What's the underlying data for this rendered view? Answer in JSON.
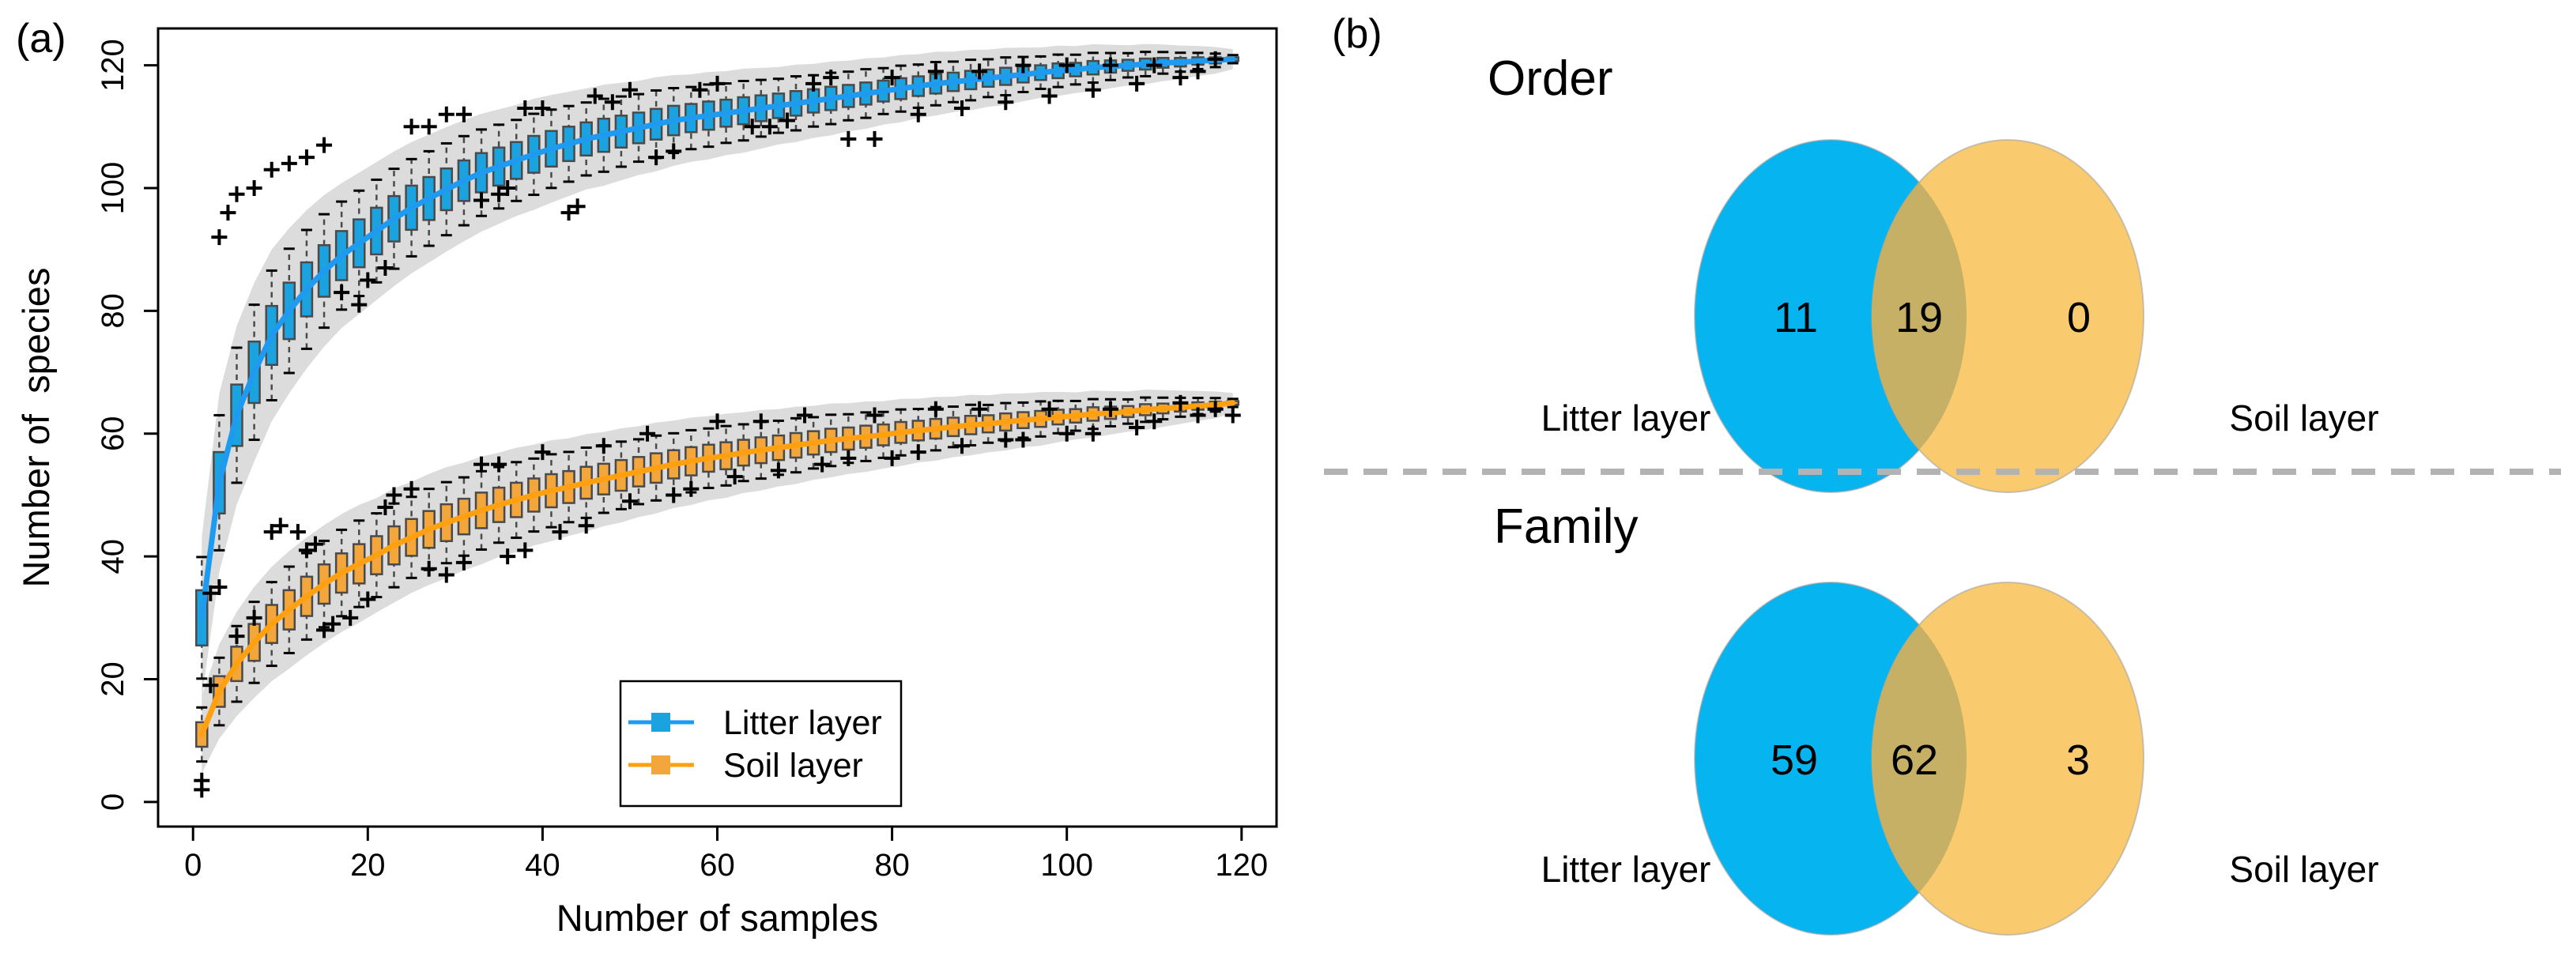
{
  "panel_a": {
    "label": "(a)"
  },
  "panel_b": {
    "label": "(b)"
  },
  "colors": {
    "venn_litter": "#06B4F0",
    "venn_soil": "#FACB6E",
    "venn_overlap": "#C5B065",
    "litter_text": "#1E90FF",
    "soil_text": "#FF8C00",
    "divider": "#B3B3B3"
  },
  "chart_data": [
    {
      "type": "boxplot-rarefaction",
      "xlabel": "Number of samples",
      "ylabel": "Number of  species",
      "xlim": [
        -4,
        124
      ],
      "ylim": [
        -4,
        126
      ],
      "x_ticks": [
        0,
        20,
        40,
        60,
        80,
        100,
        120
      ],
      "y_ticks": [
        0,
        20,
        40,
        60,
        80,
        100,
        120
      ],
      "grid": false,
      "band_color": "#DCDCDC",
      "whisker_color": "#4A4A4A",
      "box_stroke": "#4A4A4A",
      "legend_position": "inside-bottom-center",
      "series": [
        {
          "name": "Litter layer",
          "box_fill": "#1BA3E0",
          "line_color": "#1E9BF0",
          "whisker_factor": 2.2,
          "band_factor": 1.25,
          "band_pad": 0.8,
          "n": [
            1,
            3,
            5,
            7,
            9,
            11,
            13,
            15,
            17,
            19,
            21,
            23,
            25,
            27,
            29,
            31,
            33,
            35,
            37,
            39,
            41,
            43,
            45,
            47,
            49,
            51,
            53,
            55,
            57,
            59,
            61,
            63,
            65,
            67,
            69,
            71,
            73,
            75,
            77,
            79,
            81,
            83,
            85,
            87,
            89,
            91,
            93,
            95,
            97,
            99,
            101,
            103,
            105,
            107,
            109,
            111,
            113,
            115,
            117,
            119
          ],
          "median": [
            30,
            52,
            63,
            70,
            76,
            80,
            83.5,
            86.5,
            89,
            91,
            93,
            95,
            96.8,
            98.3,
            99.8,
            101.2,
            102.5,
            103.5,
            104.5,
            105.5,
            106.4,
            107.2,
            108,
            108.6,
            109.2,
            109.8,
            110.4,
            111,
            111.4,
            111.8,
            112.2,
            112.6,
            113,
            113.4,
            113.8,
            114.2,
            114.6,
            115,
            115.4,
            115.8,
            116.2,
            116.6,
            117,
            117.3,
            117.6,
            117.9,
            118.2,
            118.5,
            118.8,
            119.1,
            119.3,
            119.6,
            119.8,
            120,
            120.2,
            120.4,
            120.5,
            120.7,
            120.8,
            121
          ],
          "iqr_half": [
            4.5,
            5,
            5,
            5,
            4.8,
            4.6,
            4.4,
            4.2,
            4,
            3.9,
            3.8,
            3.7,
            3.6,
            3.5,
            3.4,
            3.3,
            3.2,
            3.1,
            3,
            3,
            2.9,
            2.8,
            2.7,
            2.7,
            2.6,
            2.5,
            2.5,
            2.4,
            2.3,
            2.3,
            2.2,
            2.2,
            2.1,
            2,
            2,
            1.9,
            1.9,
            1.8,
            1.8,
            1.7,
            1.7,
            1.6,
            1.6,
            1.5,
            1.5,
            1.4,
            1.4,
            1.3,
            1.2,
            1.2,
            1.1,
            1.1,
            1,
            0.9,
            0.9,
            0.8,
            0.7,
            0.6,
            0.5,
            0.3
          ],
          "outliers": [
            [
              2,
              34
            ],
            [
              3,
              92
            ],
            [
              4,
              96
            ],
            [
              5,
              99
            ],
            [
              7,
              100
            ],
            [
              9,
              103
            ],
            [
              11,
              104
            ],
            [
              13,
              105
            ],
            [
              15,
              107
            ],
            [
              17,
              83
            ],
            [
              19,
              81
            ],
            [
              20,
              85
            ],
            [
              22,
              87
            ],
            [
              25,
              110
            ],
            [
              27,
              110
            ],
            [
              29,
              112
            ],
            [
              31,
              112
            ],
            [
              33,
              98
            ],
            [
              35,
              99
            ],
            [
              36,
              100
            ],
            [
              38,
              113
            ],
            [
              40,
              113
            ],
            [
              43,
              96
            ],
            [
              44,
              97
            ],
            [
              46,
              115
            ],
            [
              48,
              114
            ],
            [
              50,
              116
            ],
            [
              53,
              105
            ],
            [
              55,
              106
            ],
            [
              58,
              116
            ],
            [
              60,
              117
            ],
            [
              64,
              110
            ],
            [
              66,
              110
            ],
            [
              68,
              111
            ],
            [
              71,
              117
            ],
            [
              73,
              118
            ],
            [
              75,
              108
            ],
            [
              78,
              108
            ],
            [
              80,
              118
            ],
            [
              83,
              112
            ],
            [
              85,
              119
            ],
            [
              88,
              113
            ],
            [
              90,
              119
            ],
            [
              93,
              114
            ],
            [
              95,
              120
            ],
            [
              98,
              115
            ],
            [
              100,
              120
            ],
            [
              103,
              116
            ],
            [
              105,
              120
            ],
            [
              108,
              117
            ],
            [
              110,
              120
            ],
            [
              113,
              118
            ],
            [
              115,
              119
            ],
            [
              117,
              121
            ]
          ]
        },
        {
          "name": "Soil layer",
          "box_fill": "#F3A63C",
          "line_color": "#FFA010",
          "whisker_factor": 2.2,
          "band_factor": 1.25,
          "band_pad": 0.8,
          "n": [
            1,
            3,
            5,
            7,
            9,
            11,
            13,
            15,
            17,
            19,
            21,
            23,
            25,
            27,
            29,
            31,
            33,
            35,
            37,
            39,
            41,
            43,
            45,
            47,
            49,
            51,
            53,
            55,
            57,
            59,
            61,
            63,
            65,
            67,
            69,
            71,
            73,
            75,
            77,
            79,
            81,
            83,
            85,
            87,
            89,
            91,
            93,
            95,
            97,
            99,
            101,
            103,
            105,
            107,
            109,
            111,
            113,
            115,
            117,
            119
          ],
          "median": [
            11,
            18,
            22.5,
            26,
            29,
            31.3,
            33.5,
            35.5,
            37.3,
            38.8,
            40.2,
            41.8,
            43.1,
            44.4,
            45.5,
            46.5,
            47.5,
            48.4,
            49.2,
            50,
            50.7,
            51.3,
            52,
            52.6,
            53.2,
            53.8,
            54.4,
            55,
            55.5,
            56,
            56.4,
            56.9,
            57.3,
            57.7,
            58.1,
            58.5,
            58.9,
            59.2,
            59.5,
            59.8,
            60.2,
            60.5,
            60.8,
            61.1,
            61.4,
            61.6,
            61.9,
            62.2,
            62.4,
            62.7,
            62.9,
            63.2,
            63.4,
            63.6,
            63.9,
            64.1,
            64.3,
            64.5,
            64.7,
            65
          ],
          "iqr_half": [
            2,
            2.5,
            2.8,
            3,
            3.1,
            3.2,
            3.2,
            3.2,
            3.2,
            3.2,
            3.1,
            3.1,
            3,
            3,
            3,
            2.9,
            2.9,
            2.8,
            2.8,
            2.7,
            2.7,
            2.6,
            2.6,
            2.5,
            2.5,
            2.4,
            2.4,
            2.3,
            2.3,
            2.2,
            2.2,
            2.1,
            2.1,
            2,
            2,
            1.9,
            1.9,
            1.8,
            1.8,
            1.7,
            1.7,
            1.6,
            1.6,
            1.5,
            1.5,
            1.4,
            1.4,
            1.3,
            1.3,
            1.2,
            1.1,
            1.1,
            1,
            0.9,
            0.9,
            0.8,
            0.7,
            0.6,
            0.5,
            0.3
          ],
          "outliers": [
            [
              1,
              2
            ],
            [
              1,
              3.5
            ],
            [
              2,
              19
            ],
            [
              3,
              35
            ],
            [
              5,
              27
            ],
            [
              7,
              30
            ],
            [
              9,
              44
            ],
            [
              10,
              45
            ],
            [
              12,
              44
            ],
            [
              13,
              41
            ],
            [
              14,
              42
            ],
            [
              15,
              28
            ],
            [
              16,
              29
            ],
            [
              18,
              30
            ],
            [
              20,
              33
            ],
            [
              22,
              48
            ],
            [
              23,
              50
            ],
            [
              25,
              51
            ],
            [
              27,
              38
            ],
            [
              29,
              37
            ],
            [
              31,
              39
            ],
            [
              33,
              55
            ],
            [
              35,
              55
            ],
            [
              36,
              40
            ],
            [
              38,
              41
            ],
            [
              40,
              57
            ],
            [
              42,
              44
            ],
            [
              45,
              45
            ],
            [
              47,
              58
            ],
            [
              50,
              49
            ],
            [
              52,
              60
            ],
            [
              55,
              50
            ],
            [
              57,
              51
            ],
            [
              60,
              62
            ],
            [
              62,
              53
            ],
            [
              65,
              62
            ],
            [
              67,
              54
            ],
            [
              70,
              63
            ],
            [
              72,
              55
            ],
            [
              75,
              56
            ],
            [
              78,
              63
            ],
            [
              80,
              56
            ],
            [
              83,
              57
            ],
            [
              85,
              64
            ],
            [
              88,
              58
            ],
            [
              90,
              64
            ],
            [
              93,
              59
            ],
            [
              95,
              59
            ],
            [
              98,
              64
            ],
            [
              100,
              60
            ],
            [
              103,
              60
            ],
            [
              105,
              64
            ],
            [
              108,
              61
            ],
            [
              110,
              62
            ],
            [
              113,
              65
            ],
            [
              115,
              63
            ],
            [
              117,
              64
            ],
            [
              119,
              63
            ]
          ]
        }
      ]
    },
    {
      "type": "venn",
      "title": "Order",
      "sets": [
        "Litter layer",
        "Soil layer"
      ],
      "left_only": 11,
      "overlap": 19,
      "right_only": 0
    },
    {
      "type": "venn",
      "title": "Family",
      "sets": [
        "Litter layer",
        "Soil layer"
      ],
      "left_only": 59,
      "overlap": 62,
      "right_only": 3
    }
  ]
}
